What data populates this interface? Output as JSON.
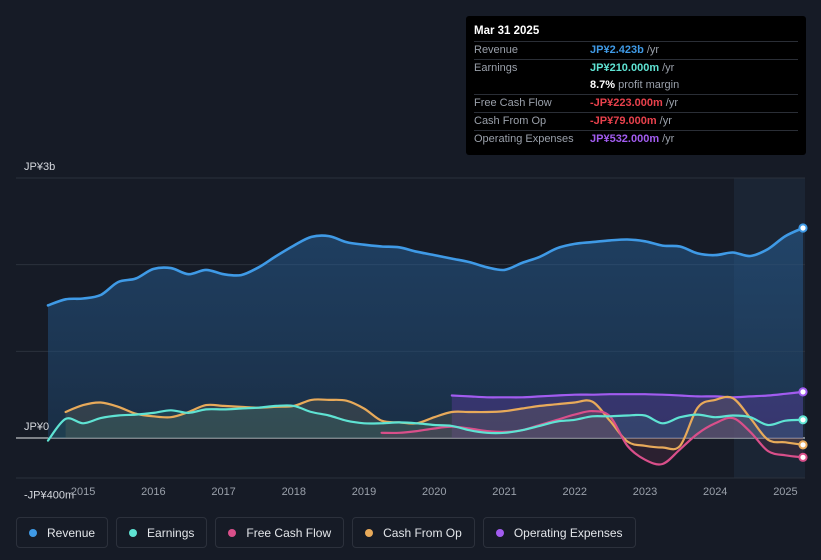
{
  "tooltip": {
    "date": "Mar 31 2025",
    "rows": [
      {
        "label": "Revenue",
        "value": "JP¥2.423b",
        "unit": "/yr",
        "color": "#3f9ae6"
      },
      {
        "label": "Earnings",
        "value": "JP¥210.000m",
        "unit": "/yr",
        "color": "#5fe3d3"
      },
      {
        "label": "",
        "value": "8.7%",
        "unit": "profit margin",
        "color": "#ffffff"
      },
      {
        "label": "Free Cash Flow",
        "value": "-JP¥223.000m",
        "unit": "/yr",
        "color": "#e8414c"
      },
      {
        "label": "Cash From Op",
        "value": "-JP¥79.000m",
        "unit": "/yr",
        "color": "#e8414c"
      },
      {
        "label": "Operating Expenses",
        "value": "JP¥532.000m",
        "unit": "/yr",
        "color": "#a25cf0"
      }
    ]
  },
  "chart_data": {
    "type": "line",
    "title": "",
    "xlabel": "",
    "ylabel": "",
    "ylim": [
      -400,
      3000
    ],
    "unit": "JP¥ millions",
    "y_tick_labels": [
      "JP¥3b",
      "JP¥0",
      "-JP¥400m"
    ],
    "x_tick_labels": [
      "2015",
      "2016",
      "2017",
      "2018",
      "2019",
      "2020",
      "2021",
      "2022",
      "2023",
      "2024",
      "2025"
    ],
    "series": [
      {
        "name": "Revenue",
        "color": "#3f9ae6",
        "x": [
          2014.5,
          2014.75,
          2015.0,
          2015.25,
          2015.5,
          2015.75,
          2016.0,
          2016.25,
          2016.5,
          2016.75,
          2017.0,
          2017.25,
          2017.5,
          2017.75,
          2018.0,
          2018.25,
          2018.5,
          2018.75,
          2019.0,
          2019.25,
          2019.5,
          2019.75,
          2020.0,
          2020.25,
          2020.5,
          2020.75,
          2021.0,
          2021.25,
          2021.5,
          2021.75,
          2022.0,
          2022.25,
          2022.5,
          2022.75,
          2023.0,
          2023.25,
          2023.5,
          2023.75,
          2024.0,
          2024.25,
          2024.5,
          2024.75,
          2025.0,
          2025.25
        ],
        "values": [
          1530,
          1600,
          1610,
          1650,
          1800,
          1840,
          1950,
          1960,
          1890,
          1940,
          1890,
          1880,
          1970,
          2100,
          2220,
          2320,
          2330,
          2260,
          2230,
          2210,
          2200,
          2150,
          2110,
          2070,
          2030,
          1970,
          1940,
          2020,
          2090,
          2190,
          2240,
          2260,
          2280,
          2290,
          2270,
          2220,
          2210,
          2130,
          2110,
          2140,
          2100,
          2180,
          2330,
          2423
        ]
      },
      {
        "name": "Earnings",
        "color": "#5fe3d3",
        "x": [
          2014.5,
          2014.75,
          2015.0,
          2015.25,
          2015.5,
          2015.75,
          2016.0,
          2016.25,
          2016.5,
          2016.75,
          2017.0,
          2017.25,
          2017.5,
          2017.75,
          2018.0,
          2018.25,
          2018.5,
          2018.75,
          2019.0,
          2019.25,
          2019.5,
          2019.75,
          2020.0,
          2020.25,
          2020.5,
          2020.75,
          2021.0,
          2021.25,
          2021.5,
          2021.75,
          2022.0,
          2022.25,
          2022.5,
          2022.75,
          2023.0,
          2023.25,
          2023.5,
          2023.75,
          2024.0,
          2024.25,
          2024.5,
          2024.75,
          2025.0,
          2025.25
        ],
        "values": [
          -30,
          220,
          170,
          230,
          260,
          270,
          290,
          320,
          290,
          330,
          330,
          340,
          350,
          370,
          370,
          300,
          260,
          200,
          170,
          170,
          180,
          170,
          150,
          140,
          90,
          60,
          60,
          90,
          140,
          190,
          210,
          250,
          250,
          260,
          260,
          170,
          240,
          270,
          240,
          260,
          240,
          150,
          200,
          210
        ]
      },
      {
        "name": "Free Cash Flow",
        "color": "#d94f8a",
        "x": [
          2019.25,
          2019.5,
          2019.75,
          2020.0,
          2020.25,
          2020.5,
          2020.75,
          2021.0,
          2021.25,
          2021.5,
          2021.75,
          2022.0,
          2022.25,
          2022.5,
          2022.75,
          2023.0,
          2023.25,
          2023.5,
          2023.75,
          2024.0,
          2024.25,
          2024.5,
          2024.75,
          2025.0,
          2025.25
        ],
        "values": [
          60,
          60,
          80,
          110,
          130,
          110,
          80,
          70,
          90,
          150,
          210,
          270,
          310,
          250,
          -90,
          -250,
          -300,
          -130,
          50,
          170,
          230,
          70,
          -150,
          -200,
          -223
        ]
      },
      {
        "name": "Cash From Op",
        "color": "#e8aa5a",
        "x": [
          2014.75,
          2015.0,
          2015.25,
          2015.5,
          2015.75,
          2016.0,
          2016.25,
          2016.5,
          2016.75,
          2017.0,
          2017.25,
          2017.5,
          2017.75,
          2018.0,
          2018.25,
          2018.5,
          2018.75,
          2019.0,
          2019.25,
          2019.5,
          2019.75,
          2020.0,
          2020.25,
          2020.5,
          2020.75,
          2021.0,
          2021.25,
          2021.5,
          2021.75,
          2022.0,
          2022.25,
          2022.5,
          2022.75,
          2023.0,
          2023.25,
          2023.5,
          2023.75,
          2024.0,
          2024.25,
          2024.5,
          2024.75,
          2025.0,
          2025.25
        ],
        "values": [
          300,
          380,
          410,
          360,
          280,
          250,
          240,
          300,
          380,
          370,
          360,
          350,
          360,
          370,
          440,
          440,
          430,
          340,
          200,
          180,
          170,
          240,
          300,
          300,
          300,
          310,
          340,
          370,
          390,
          410,
          420,
          200,
          -40,
          -90,
          -110,
          -90,
          350,
          440,
          460,
          230,
          -20,
          -50,
          -79
        ]
      },
      {
        "name": "Operating Expenses",
        "color": "#a25cf0",
        "x": [
          2020.25,
          2020.5,
          2020.75,
          2021.0,
          2021.25,
          2021.5,
          2021.75,
          2022.0,
          2022.25,
          2022.5,
          2022.75,
          2023.0,
          2023.25,
          2023.5,
          2023.75,
          2024.0,
          2024.25,
          2024.5,
          2024.75,
          2025.0,
          2025.25
        ],
        "values": [
          490,
          480,
          470,
          470,
          470,
          480,
          490,
          500,
          500,
          505,
          505,
          505,
          500,
          490,
          480,
          480,
          470,
          480,
          490,
          510,
          532
        ]
      }
    ]
  },
  "legend": [
    {
      "label": "Revenue",
      "color": "#3f9ae6"
    },
    {
      "label": "Earnings",
      "color": "#5fe3d3"
    },
    {
      "label": "Free Cash Flow",
      "color": "#d94f8a"
    },
    {
      "label": "Cash From Op",
      "color": "#e8aa5a"
    },
    {
      "label": "Operating Expenses",
      "color": "#a25cf0"
    }
  ]
}
